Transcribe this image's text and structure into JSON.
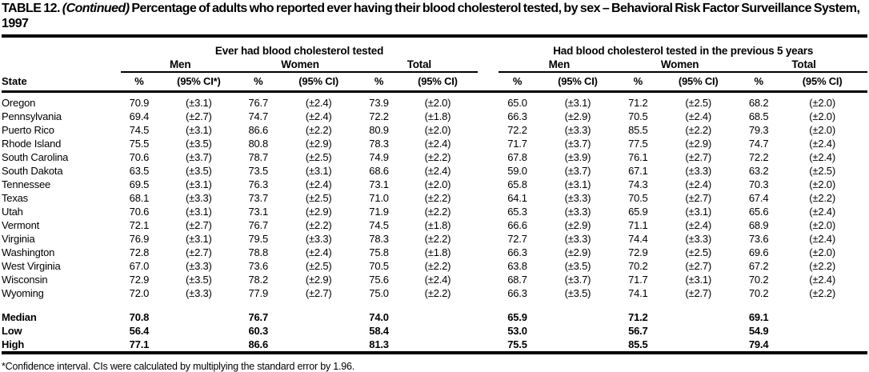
{
  "title": {
    "prefix": "TABLE 12.",
    "continued": "(Continued)",
    "rest": "Percentage of adults who reported ever having their blood cholesterol tested, by sex – Behavioral Risk Factor Surveillance System, 1997"
  },
  "table": {
    "state_header": "State",
    "group_headers": [
      "Ever had blood cholesterol tested",
      "Had blood cholesterol tested in the previous 5 years"
    ],
    "subgroup_headers": [
      "Men",
      "Women",
      "Total",
      "Men",
      "Women",
      "Total"
    ],
    "column_headers": [
      "%",
      "(95% CI*)",
      "%",
      "(95% CI)",
      "%",
      "(95% CI)",
      "%",
      "(95% CI)",
      "%",
      "(95% CI)",
      "%",
      "(95% CI)"
    ],
    "rows": [
      {
        "state": "Oregon",
        "values": [
          "70.9",
          "(±3.1)",
          "76.7",
          "(±2.4)",
          "73.9",
          "(±2.0)",
          "65.0",
          "(±3.1)",
          "71.2",
          "(±2.5)",
          "68.2",
          "(±2.0)"
        ]
      },
      {
        "state": "Pennsylvania",
        "values": [
          "69.4",
          "(±2.7)",
          "74.7",
          "(±2.4)",
          "72.2",
          "(±1.8)",
          "66.3",
          "(±2.9)",
          "70.5",
          "(±2.4)",
          "68.5",
          "(±2.0)"
        ]
      },
      {
        "state": "Puerto Rico",
        "values": [
          "74.5",
          "(±3.1)",
          "86.6",
          "(±2.2)",
          "80.9",
          "(±2.0)",
          "72.2",
          "(±3.3)",
          "85.5",
          "(±2.2)",
          "79.3",
          "(±2.0)"
        ]
      },
      {
        "state": "Rhode Island",
        "values": [
          "75.5",
          "(±3.5)",
          "80.8",
          "(±2.9)",
          "78.3",
          "(±2.4)",
          "71.7",
          "(±3.7)",
          "77.5",
          "(±2.9)",
          "74.7",
          "(±2.4)"
        ]
      },
      {
        "state": "South Carolina",
        "values": [
          "70.6",
          "(±3.7)",
          "78.7",
          "(±2.5)",
          "74.9",
          "(±2.2)",
          "67.8",
          "(±3.9)",
          "76.1",
          "(±2.7)",
          "72.2",
          "(±2.4)"
        ]
      },
      {
        "state": "South Dakota",
        "values": [
          "63.5",
          "(±3.5)",
          "73.5",
          "(±3.1)",
          "68.6",
          "(±2.4)",
          "59.0",
          "(±3.7)",
          "67.1",
          "(±3.3)",
          "63.2",
          "(±2.5)"
        ]
      },
      {
        "state": "Tennessee",
        "values": [
          "69.5",
          "(±3.1)",
          "76.3",
          "(±2.4)",
          "73.1",
          "(±2.0)",
          "65.8",
          "(±3.1)",
          "74.3",
          "(±2.4)",
          "70.3",
          "(±2.0)"
        ]
      },
      {
        "state": "Texas",
        "values": [
          "68.1",
          "(±3.3)",
          "73.7",
          "(±2.5)",
          "71.0",
          "(±2.2)",
          "64.1",
          "(±3.3)",
          "70.5",
          "(±2.7)",
          "67.4",
          "(±2.2)"
        ]
      },
      {
        "state": "Utah",
        "values": [
          "70.6",
          "(±3.1)",
          "73.1",
          "(±2.9)",
          "71.9",
          "(±2.2)",
          "65.3",
          "(±3.3)",
          "65.9",
          "(±3.1)",
          "65.6",
          "(±2.4)"
        ]
      },
      {
        "state": "Vermont",
        "values": [
          "72.1",
          "(±2.7)",
          "76.7",
          "(±2.2)",
          "74.5",
          "(±1.8)",
          "66.6",
          "(±2.9)",
          "71.1",
          "(±2.4)",
          "68.9",
          "(±2.0)"
        ]
      },
      {
        "state": "Virginia",
        "values": [
          "76.9",
          "(±3.1)",
          "79.5",
          "(±3.3)",
          "78.3",
          "(±2.2)",
          "72.7",
          "(±3.3)",
          "74.4",
          "(±3.3)",
          "73.6",
          "(±2.4)"
        ]
      },
      {
        "state": "Washington",
        "values": [
          "72.8",
          "(±2.7)",
          "78.8",
          "(±2.4)",
          "75.8",
          "(±1.8)",
          "66.3",
          "(±2.9)",
          "72.9",
          "(±2.5)",
          "69.6",
          "(±2.0)"
        ]
      },
      {
        "state": "West Virginia",
        "values": [
          "67.0",
          "(±3.3)",
          "73.6",
          "(±2.5)",
          "70.5",
          "(±2.2)",
          "63.8",
          "(±3.5)",
          "70.2",
          "(±2.7)",
          "67.2",
          "(±2.2)"
        ]
      },
      {
        "state": "Wisconsin",
        "values": [
          "72.9",
          "(±3.5)",
          "78.2",
          "(±2.9)",
          "75.6",
          "(±2.4)",
          "68.7",
          "(±3.7)",
          "71.7",
          "(±3.1)",
          "70.2",
          "(±2.4)"
        ]
      },
      {
        "state": "Wyoming",
        "values": [
          "72.0",
          "(±3.3)",
          "77.9",
          "(±2.7)",
          "75.0",
          "(±2.2)",
          "66.3",
          "(±3.5)",
          "74.1",
          "(±2.7)",
          "70.2",
          "(±2.2)"
        ]
      }
    ],
    "summary_rows": [
      {
        "label": "Median",
        "values": [
          "70.8",
          "",
          "76.7",
          "",
          "74.0",
          "",
          "65.9",
          "",
          "71.2",
          "",
          "69.1",
          ""
        ]
      },
      {
        "label": "Low",
        "values": [
          "56.4",
          "",
          "60.3",
          "",
          "58.4",
          "",
          "53.0",
          "",
          "56.7",
          "",
          "54.9",
          ""
        ]
      },
      {
        "label": "High",
        "values": [
          "77.1",
          "",
          "86.6",
          "",
          "81.3",
          "",
          "75.5",
          "",
          "85.5",
          "",
          "79.4",
          ""
        ]
      }
    ]
  },
  "footnote": "*Confidence interval. CIs were calculated by multiplying the standard error by 1.96."
}
